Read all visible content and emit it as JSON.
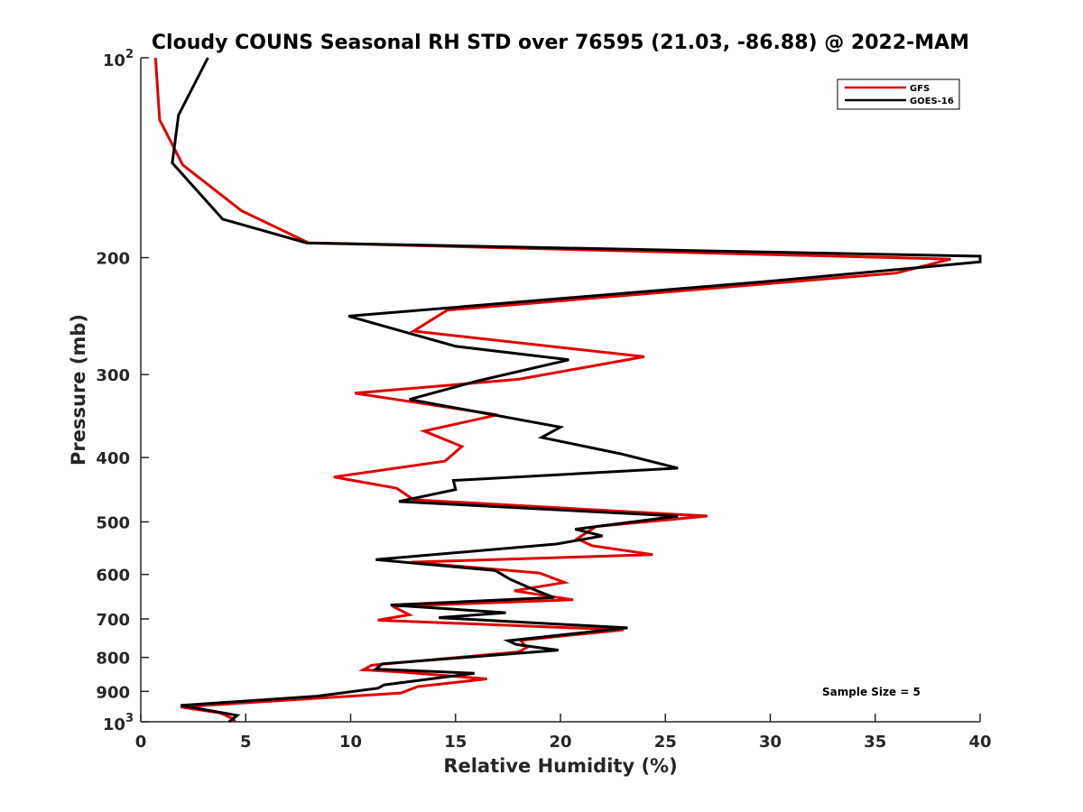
{
  "chart_data": {
    "type": "line",
    "title": "Cloudy COUNS Seasonal RH STD over 76595 (21.03, -86.88) @ 2022-MAM",
    "xlabel": "Relative Humidity (%)",
    "ylabel": "Pressure (mb)",
    "xlim": [
      0,
      40
    ],
    "ylim": [
      100,
      1000
    ],
    "yscale": "log",
    "y_reversed": true,
    "grid": false,
    "legend_position": "top-right",
    "x_ticks": [
      0,
      5,
      10,
      15,
      20,
      25,
      30,
      35,
      40
    ],
    "x_tick_labels": [
      "0",
      "5",
      "10",
      "15",
      "20",
      "25",
      "30",
      "35",
      "40"
    ],
    "y_ticks": [
      100,
      200,
      300,
      400,
      500,
      600,
      700,
      800,
      900,
      1000
    ],
    "y_tick_labels": [
      {
        "base": "10",
        "exp": "2"
      },
      {
        "base": "200",
        "exp": ""
      },
      {
        "base": "300",
        "exp": ""
      },
      {
        "base": "400",
        "exp": ""
      },
      {
        "base": "500",
        "exp": ""
      },
      {
        "base": "600",
        "exp": ""
      },
      {
        "base": "700",
        "exp": ""
      },
      {
        "base": "800",
        "exp": ""
      },
      {
        "base": "900",
        "exp": ""
      },
      {
        "base": "10",
        "exp": "3"
      }
    ],
    "annotation": "Sample Size = 5",
    "series": [
      {
        "name": "GFS",
        "color": "#e00000",
        "points": [
          [
            0.7,
            100
          ],
          [
            0.9,
            124
          ],
          [
            2.0,
            145
          ],
          [
            4.8,
            170
          ],
          [
            8.0,
            190
          ],
          [
            38.6,
            201
          ],
          [
            36.0,
            211
          ],
          [
            14.6,
            240
          ],
          [
            13.0,
            258
          ],
          [
            24.0,
            282
          ],
          [
            18.0,
            305
          ],
          [
            10.2,
            320
          ],
          [
            17.0,
            345
          ],
          [
            13.5,
            365
          ],
          [
            15.3,
            385
          ],
          [
            14.5,
            405
          ],
          [
            9.2,
            428
          ],
          [
            12.2,
            445
          ],
          [
            13.0,
            463
          ],
          [
            27.0,
            490
          ],
          [
            21.7,
            508
          ],
          [
            20.8,
            530
          ],
          [
            21.5,
            543
          ],
          [
            24.4,
            560
          ],
          [
            12.9,
            575
          ],
          [
            19.0,
            597
          ],
          [
            20.2,
            617
          ],
          [
            17.8,
            635
          ],
          [
            20.6,
            655
          ],
          [
            12.0,
            670
          ],
          [
            12.8,
            690
          ],
          [
            11.3,
            703
          ],
          [
            23.0,
            727
          ],
          [
            18.1,
            754
          ],
          [
            18.4,
            773
          ],
          [
            18.0,
            785
          ],
          [
            11.0,
            822
          ],
          [
            10.6,
            835
          ],
          [
            12.5,
            842
          ],
          [
            16.5,
            862
          ],
          [
            13.2,
            885
          ],
          [
            12.4,
            905
          ],
          [
            1.9,
            950
          ],
          [
            3.8,
            970
          ],
          [
            4.4,
            990
          ],
          [
            4.5,
            1000
          ]
        ]
      },
      {
        "name": "GOES-16",
        "color": "#000000",
        "points": [
          [
            3.2,
            100
          ],
          [
            1.8,
            122
          ],
          [
            1.5,
            144
          ],
          [
            3.9,
            175
          ],
          [
            7.9,
            190
          ],
          [
            40.0,
            199
          ],
          [
            40.0,
            203
          ],
          [
            30.0,
            217
          ],
          [
            9.9,
            245
          ],
          [
            15.0,
            272
          ],
          [
            20.4,
            285
          ],
          [
            16.0,
            307
          ],
          [
            12.8,
            327
          ],
          [
            20.0,
            360
          ],
          [
            19.1,
            373
          ],
          [
            22.9,
            395
          ],
          [
            25.6,
            415
          ],
          [
            14.9,
            433
          ],
          [
            15.0,
            447
          ],
          [
            12.3,
            466
          ],
          [
            25.6,
            490
          ],
          [
            20.7,
            513
          ],
          [
            22.0,
            525
          ],
          [
            19.8,
            540
          ],
          [
            11.2,
            570
          ],
          [
            16.9,
            592
          ],
          [
            17.6,
            610
          ],
          [
            18.6,
            630
          ],
          [
            19.7,
            650
          ],
          [
            11.9,
            667
          ],
          [
            17.4,
            685
          ],
          [
            14.2,
            697
          ],
          [
            23.2,
            722
          ],
          [
            17.5,
            755
          ],
          [
            17.9,
            765
          ],
          [
            19.9,
            780
          ],
          [
            11.5,
            818
          ],
          [
            11.2,
            833
          ],
          [
            15.9,
            845
          ],
          [
            11.6,
            880
          ],
          [
            11.3,
            890
          ],
          [
            8.4,
            915
          ],
          [
            1.9,
            945
          ],
          [
            4.6,
            978
          ],
          [
            4.2,
            1000
          ]
        ]
      }
    ]
  }
}
